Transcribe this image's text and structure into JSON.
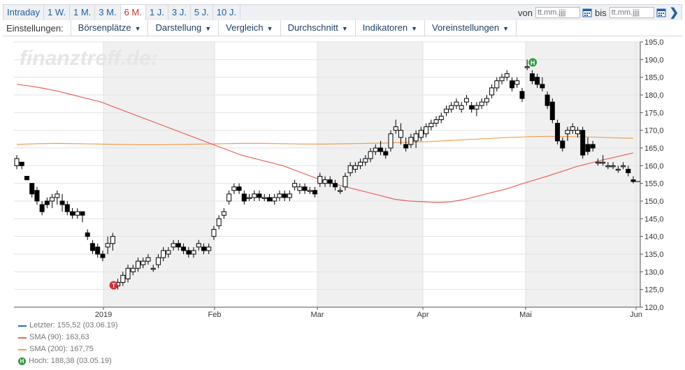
{
  "toolbar": {
    "tabs": [
      "Intraday",
      "1 W.",
      "1 M.",
      "3 M.",
      "6 M.",
      "1 J.",
      "3 J.",
      "5 J.",
      "10 J."
    ],
    "active_tab": "6 M.",
    "from_label": "von",
    "to_label": "bis",
    "date_placeholder": "tt.mm.jjjj"
  },
  "menubar": {
    "settings_label": "Einstellungen:",
    "menus": [
      "Börsenplätze",
      "Darstellung",
      "Vergleich",
      "Durchschnitt",
      "Indikatoren",
      "Voreinstellungen"
    ]
  },
  "chart_data": {
    "type": "candlestick",
    "watermark": "finanztreff.de:",
    "x_ticks": [
      "2019",
      "Feb",
      "Mar",
      "Apr",
      "Mai",
      "Jun"
    ],
    "ylim": [
      120,
      195
    ],
    "y_ticks": [
      "195,0",
      "190,0",
      "185,0",
      "180,0",
      "175,0",
      "170,0",
      "165,0",
      "160,0",
      "155,0",
      "150,0",
      "145,0",
      "140,0",
      "135,0",
      "130,0",
      "125,0",
      "120,0"
    ],
    "grid": true,
    "colors": {
      "sma90": "#e8645a",
      "sma200": "#f0a050",
      "last": "#2b6cb0",
      "high_marker": "#2e9a3c",
      "low_marker": "#d32f2f"
    },
    "candles": [
      [
        160,
        163,
        159,
        162
      ],
      [
        161,
        161,
        159,
        160
      ],
      [
        157,
        157,
        156,
        156
      ],
      [
        155,
        155,
        151,
        152
      ],
      [
        153,
        154,
        149,
        150
      ],
      [
        149,
        150,
        146,
        147
      ],
      [
        150,
        151,
        148,
        149
      ],
      [
        150,
        152,
        148,
        151
      ],
      [
        151,
        153,
        149,
        152
      ],
      [
        150,
        152,
        147,
        149
      ],
      [
        149,
        150,
        146,
        147
      ],
      [
        147,
        148,
        145,
        146
      ],
      [
        146,
        148,
        145,
        147
      ],
      [
        147,
        147,
        144,
        146
      ],
      [
        141,
        142,
        139,
        140
      ],
      [
        138,
        139,
        135,
        136
      ],
      [
        137,
        138,
        134,
        135
      ],
      [
        135,
        136,
        133,
        134
      ],
      [
        137,
        140,
        135,
        138
      ],
      [
        138,
        141,
        136,
        140
      ],
      [
        126,
        128,
        125,
        127
      ],
      [
        127,
        130,
        126,
        129
      ],
      [
        128,
        132,
        127,
        131
      ],
      [
        130,
        132,
        129,
        131
      ],
      [
        131,
        134,
        130,
        133
      ],
      [
        132,
        134,
        131,
        133
      ],
      [
        133,
        135,
        132,
        134
      ],
      [
        131,
        132,
        130,
        131
      ],
      [
        132,
        135,
        131,
        134
      ],
      [
        134,
        137,
        133,
        136
      ],
      [
        135,
        137,
        134,
        136
      ],
      [
        137,
        139,
        136,
        138
      ],
      [
        138,
        139,
        136,
        137
      ],
      [
        137,
        138,
        135,
        136
      ],
      [
        136,
        137,
        134,
        135
      ],
      [
        135,
        137,
        134,
        136
      ],
      [
        137,
        139,
        136,
        138
      ],
      [
        137,
        138,
        135,
        136
      ],
      [
        136,
        138,
        135,
        137
      ],
      [
        140,
        143,
        139,
        142
      ],
      [
        143,
        146,
        142,
        145
      ],
      [
        146,
        148,
        145,
        147
      ],
      [
        150,
        153,
        149,
        152
      ],
      [
        153,
        155,
        152,
        154
      ],
      [
        154,
        155,
        152,
        153
      ],
      [
        152,
        153,
        149,
        150
      ],
      [
        151,
        152,
        150,
        151
      ],
      [
        151,
        153,
        150,
        152
      ],
      [
        152,
        153,
        150,
        151
      ],
      [
        151,
        152,
        150,
        151
      ],
      [
        151,
        152,
        150,
        150
      ],
      [
        150,
        152,
        149,
        151
      ],
      [
        151,
        153,
        150,
        152
      ],
      [
        152,
        153,
        150,
        151
      ],
      [
        151,
        153,
        150,
        152
      ],
      [
        154,
        156,
        153,
        155
      ],
      [
        153,
        155,
        152,
        154
      ],
      [
        154,
        155,
        152,
        153
      ],
      [
        153,
        154,
        152,
        153
      ],
      [
        153,
        154,
        151,
        152
      ],
      [
        155,
        158,
        154,
        157
      ],
      [
        155,
        157,
        154,
        156
      ],
      [
        156,
        157,
        154,
        155
      ],
      [
        155,
        156,
        153,
        154
      ],
      [
        153,
        154,
        152,
        153
      ],
      [
        154,
        158,
        153,
        157
      ],
      [
        158,
        161,
        157,
        160
      ],
      [
        159,
        161,
        158,
        160
      ],
      [
        160,
        162,
        159,
        161
      ],
      [
        161,
        163,
        160,
        162
      ],
      [
        162,
        165,
        161,
        164
      ],
      [
        164,
        166,
        163,
        165
      ],
      [
        165,
        167,
        163,
        164
      ],
      [
        164,
        165,
        162,
        163
      ],
      [
        165,
        170,
        164,
        169
      ],
      [
        170,
        173,
        169,
        171
      ],
      [
        168,
        172,
        166,
        170
      ],
      [
        166,
        168,
        164,
        165
      ],
      [
        166,
        169,
        165,
        168
      ],
      [
        167,
        170,
        165,
        169
      ],
      [
        168,
        171,
        167,
        170
      ],
      [
        169,
        172,
        168,
        171
      ],
      [
        171,
        173,
        170,
        172
      ],
      [
        172,
        174,
        171,
        173
      ],
      [
        173,
        175,
        172,
        174
      ],
      [
        175,
        177,
        174,
        176
      ],
      [
        176,
        178,
        175,
        177
      ],
      [
        177,
        179,
        176,
        178
      ],
      [
        176,
        178,
        175,
        177
      ],
      [
        178,
        180,
        177,
        179
      ],
      [
        177,
        178,
        175,
        176
      ],
      [
        176,
        178,
        174,
        177
      ],
      [
        177,
        179,
        176,
        178
      ],
      [
        178,
        180,
        177,
        179
      ],
      [
        180,
        183,
        179,
        182
      ],
      [
        182,
        185,
        181,
        184
      ],
      [
        184,
        186,
        183,
        185
      ],
      [
        185,
        187,
        184,
        186
      ],
      [
        184,
        185,
        181,
        182
      ],
      [
        183,
        185,
        182,
        184
      ],
      [
        181,
        182,
        178,
        179
      ],
      [
        188,
        190,
        187,
        188
      ],
      [
        186,
        187,
        183,
        184
      ],
      [
        185,
        186,
        182,
        183
      ],
      [
        183,
        185,
        181,
        182
      ],
      [
        180,
        181,
        176,
        177
      ],
      [
        178,
        179,
        172,
        173
      ],
      [
        172,
        173,
        166,
        167
      ],
      [
        167,
        168,
        164,
        165
      ],
      [
        169,
        171,
        167,
        170
      ],
      [
        170,
        172,
        169,
        171
      ],
      [
        169,
        171,
        168,
        170
      ],
      [
        170,
        171,
        162,
        163
      ],
      [
        166,
        168,
        163,
        164
      ],
      [
        166,
        167,
        164,
        165
      ],
      [
        161,
        162,
        160,
        161
      ],
      [
        161,
        163,
        160,
        161
      ],
      [
        160,
        161,
        159,
        160
      ],
      [
        160,
        161,
        159,
        160
      ],
      [
        159,
        160,
        158,
        159
      ],
      [
        160,
        161,
        159,
        160
      ],
      [
        159,
        160,
        157,
        158
      ],
      [
        156,
        157,
        155,
        155.52
      ]
    ],
    "sma90": [
      183,
      182.5,
      181.8,
      181,
      180,
      179,
      178,
      176.5,
      175,
      173.5,
      172,
      170.5,
      169,
      167.5,
      166,
      164.5,
      163,
      162,
      161,
      160,
      158.5,
      157,
      155.5,
      154.5,
      153.5,
      152.5,
      151.5,
      150.5,
      150,
      149.8,
      149.6,
      149.8,
      150.5,
      151.5,
      152.5,
      153.5,
      154.8,
      156,
      157.2,
      158.5,
      159.8,
      160.8,
      161.8,
      162.7,
      163.6
    ],
    "sma200": [
      166,
      166.2,
      166.3,
      166.2,
      166.1,
      166,
      165.9,
      165.9,
      166,
      166.1,
      166.2,
      166.3,
      166.3,
      166.2,
      166.1,
      166.1,
      166.2,
      166.3,
      166.4,
      166.6,
      166.8,
      167.1,
      167.4,
      167.7,
      168,
      168.2,
      168.3,
      168.2,
      168.1,
      167.9,
      167.75
    ],
    "high_marker": {
      "label": "H",
      "candle": 101
    },
    "low_marker": {
      "label": "T",
      "candle": 20
    }
  },
  "legend": [
    {
      "text": "Letzter: 155,52 (03.06.19)",
      "kind": "line",
      "color": "#2b6cb0"
    },
    {
      "text": "SMA (90): 163,63",
      "kind": "line",
      "color": "#e8645a"
    },
    {
      "text": "SMA (200): 167,75",
      "kind": "line",
      "color": "#f0a050"
    },
    {
      "text": "Hoch: 188,38 (03.05.19)",
      "kind": "marker",
      "label": "H",
      "color": "#2e9a3c"
    }
  ]
}
